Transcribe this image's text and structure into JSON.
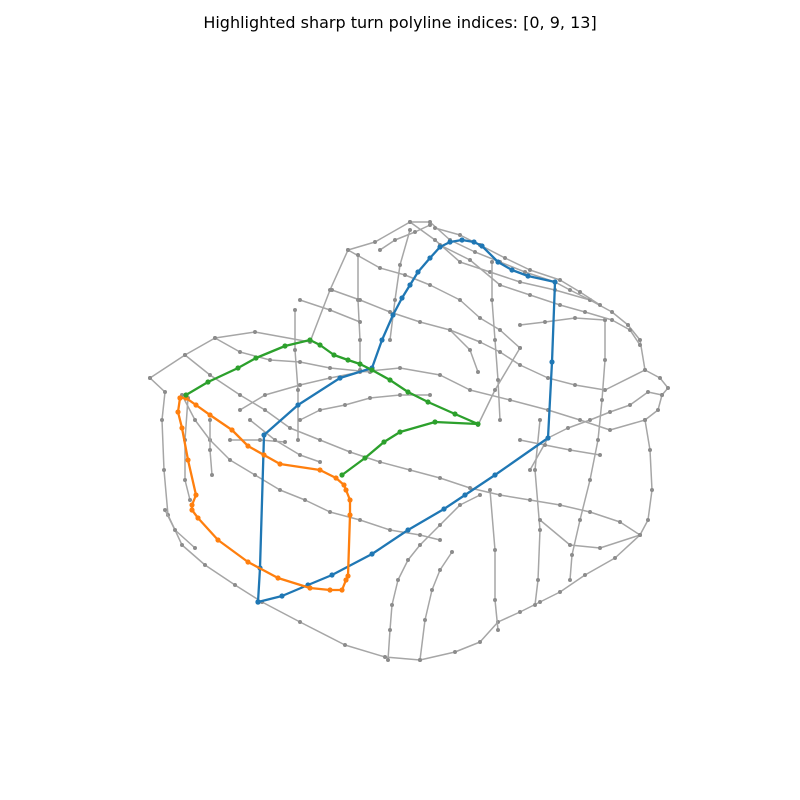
{
  "figure": {
    "title": "Highlighted sharp turn polyline indices: [0, 9, 13]"
  },
  "colors": {
    "background": "#ffffff",
    "context_polyline": "#a6a6a6",
    "context_vertex": "#8c8c8c",
    "highlight_0": "#1f77b4",
    "highlight_9": "#ff7f0e",
    "highlight_13": "#2ca02c"
  },
  "highlighted_polylines": [
    {
      "index": 0,
      "color": "#1f77b4"
    },
    {
      "index": 9,
      "color": "#ff7f0e"
    },
    {
      "index": 13,
      "color": "#2ca02c"
    }
  ]
}
